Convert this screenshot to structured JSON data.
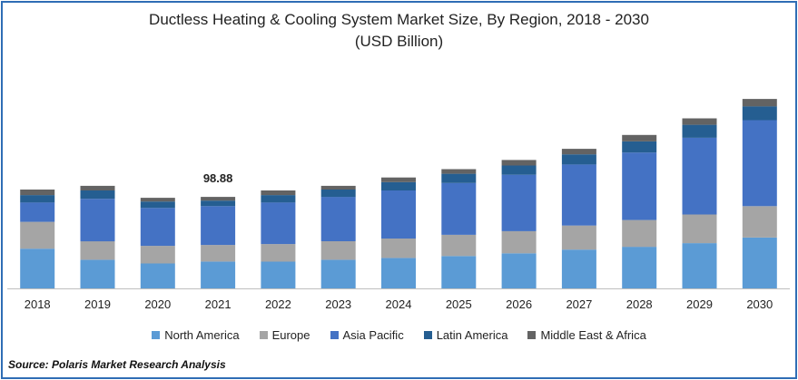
{
  "title_line1": "Ductless Heating & Cooling System Market Size, By Region, 2018 - 2030",
  "title_line2": "(USD Billion)",
  "source": "Source: Polaris  Market Research Analysis",
  "annotation": {
    "year": "2021",
    "text": "98.88"
  },
  "chart_data": {
    "type": "bar",
    "stacked": true,
    "title": "Ductless Heating & Cooling System Market Size, By Region, 2018 - 2030",
    "subtitle": "(USD Billion)",
    "xlabel": "",
    "ylabel": "",
    "categories": [
      "2018",
      "2019",
      "2020",
      "2021",
      "2022",
      "2023",
      "2024",
      "2025",
      "2026",
      "2027",
      "2028",
      "2029",
      "2030"
    ],
    "series": [
      {
        "name": "North America",
        "color": "#5b9bd5",
        "values": [
          43,
          31,
          27,
          29,
          29,
          31,
          33,
          35,
          38,
          42,
          45,
          49,
          55
        ]
      },
      {
        "name": "Europe",
        "color": "#a5a5a5",
        "values": [
          29,
          20,
          19,
          18,
          19,
          20,
          21,
          23,
          24,
          26,
          29,
          31,
          34
        ]
      },
      {
        "name": "Asia Pacific",
        "color": "#4472c4",
        "values": [
          21,
          46,
          41,
          42,
          45,
          48,
          52,
          56,
          61,
          66,
          73,
          83,
          93
        ]
      },
      {
        "name": "Latin America",
        "color": "#255e91",
        "values": [
          8,
          9,
          7,
          6,
          8,
          8,
          9,
          10,
          10,
          11,
          12,
          14,
          15
        ]
      },
      {
        "name": "Middle East & Africa",
        "color": "#636363",
        "values": [
          6,
          5,
          4,
          4,
          5,
          4,
          5,
          5,
          6,
          6,
          7,
          7,
          8
        ]
      }
    ],
    "ylim": [
      0,
      210
    ],
    "grid": false,
    "legend_position": "bottom"
  }
}
